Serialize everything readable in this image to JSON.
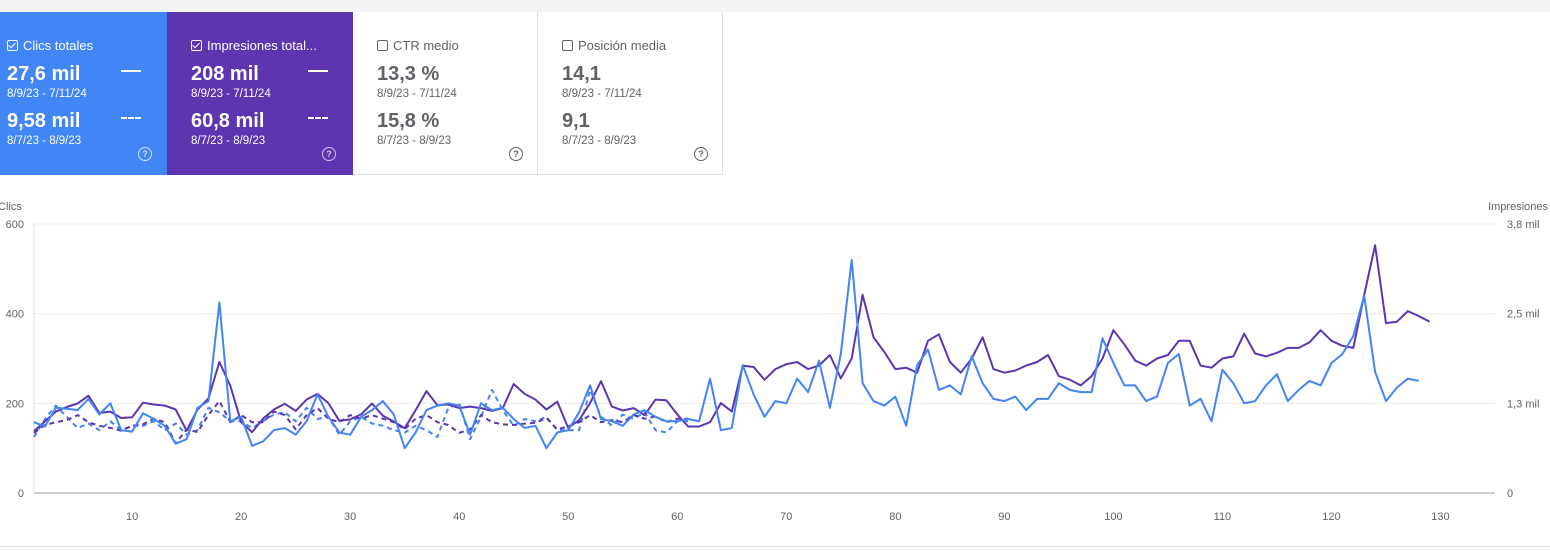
{
  "cards": [
    {
      "id": "clicks",
      "label": "Clics totales",
      "checked": true,
      "value_current": "27,6 mil",
      "range_current": "8/9/23 - 7/11/24",
      "value_previous": "9,58 mil",
      "range_previous": "8/7/23 - 8/9/23",
      "help": "?"
    },
    {
      "id": "impressions",
      "label": "Impresiones total...",
      "checked": true,
      "value_current": "208 mil",
      "range_current": "8/9/23 - 7/11/24",
      "value_previous": "60,8 mil",
      "range_previous": "8/7/23 - 8/9/23",
      "help": "?"
    },
    {
      "id": "ctr",
      "label": "CTR medio",
      "checked": false,
      "value_current": "13,3 %",
      "range_current": "8/9/23 - 7/11/24",
      "value_previous": "15,8 %",
      "range_previous": "8/7/23 - 8/9/23",
      "help": "?"
    },
    {
      "id": "position",
      "label": "Posición media",
      "checked": false,
      "value_current": "14,1",
      "range_current": "8/9/23 - 7/11/24",
      "value_previous": "9,1",
      "range_previous": "8/7/23 - 8/9/23",
      "help": "?"
    }
  ],
  "colors": {
    "clicks": "#4285f4",
    "impressions": "#5e35b1"
  },
  "chart_data": {
    "type": "line",
    "ylabel": "Clics",
    "y2label": "Impresiones",
    "ylim": [
      0,
      600
    ],
    "yticks": [
      "0",
      "200",
      "400",
      "600"
    ],
    "y2lim": [
      0,
      3800
    ],
    "y2ticks": [
      "0",
      "1,3 mil",
      "2,5 mil",
      "3,8 mil"
    ],
    "xticks": [
      10,
      20,
      30,
      40,
      50,
      60,
      70,
      80,
      90,
      100,
      110,
      120,
      130
    ],
    "xlim": [
      1,
      135
    ],
    "grid": true,
    "series": [
      {
        "id": "clicks_current",
        "color": "#4285f4",
        "dash": false,
        "axis": "left",
        "start": 1,
        "values": [
          158,
          148,
          190,
          188,
          185,
          210,
          175,
          200,
          140,
          137,
          178,
          165,
          150,
          110,
          120,
          190,
          205,
          425,
          160,
          170,
          105,
          115,
          140,
          145,
          130,
          160,
          220,
          170,
          135,
          130,
          170,
          185,
          205,
          175,
          100,
          135,
          185,
          195,
          200,
          195,
          130,
          200,
          185,
          190,
          165,
          145,
          150,
          100,
          135,
          140,
          180,
          240,
          165,
          160,
          150,
          175,
          185,
          170,
          160,
          160,
          165,
          160,
          255,
          140,
          145,
          285,
          220,
          170,
          205,
          200,
          255,
          225,
          295,
          190,
          310,
          520,
          245,
          205,
          195,
          215,
          150,
          285,
          320,
          230,
          240,
          220,
          305,
          245,
          210,
          205,
          215,
          185,
          210,
          210,
          245,
          230,
          225,
          225,
          345,
          290,
          240,
          240,
          205,
          215,
          290,
          310,
          195,
          210,
          160,
          275,
          245,
          200,
          205,
          240,
          265,
          205,
          230,
          250,
          240,
          290,
          310,
          350,
          440,
          270,
          205,
          235,
          255,
          250
        ]
      },
      {
        "id": "clicks_previous",
        "color": "#4285f4",
        "dash": true,
        "axis": "left",
        "start": 1,
        "values": [
          125,
          165,
          195,
          170,
          145,
          155,
          140,
          160,
          140,
          150,
          150,
          160,
          140,
          155,
          130,
          140,
          190,
          180,
          160,
          160,
          145,
          160,
          175,
          180,
          160,
          190,
          165,
          170,
          130,
          160,
          170,
          155,
          150,
          140,
          135,
          150,
          140,
          125,
          190,
          200,
          120,
          170,
          230,
          185,
          150,
          165,
          160,
          170,
          140,
          140,
          140,
          230,
          170,
          150,
          175,
          165,
          180,
          140,
          135,
          160,
          160
        ]
      },
      {
        "id": "impressions_current",
        "color": "#5e35b1",
        "dash": false,
        "axis": "right",
        "start": 1,
        "values": [
          875,
          1010,
          1150,
          1215,
          1265,
          1375,
          1130,
          1150,
          1060,
          1070,
          1275,
          1250,
          1235,
          1180,
          880,
          1180,
          1335,
          1850,
          1515,
          1000,
          860,
          1050,
          1180,
          1260,
          1160,
          1320,
          1400,
          1270,
          1020,
          1040,
          1110,
          1265,
          1090,
          1010,
          915,
          1170,
          1440,
          1240,
          1250,
          1200,
          1220,
          1200,
          1160,
          1200,
          1540,
          1400,
          1320,
          1180,
          1290,
          920,
          1030,
          1270,
          1580,
          1220,
          1165,
          1200,
          1100,
          1320,
          1310,
          1110,
          940,
          940,
          1000,
          1270,
          1150,
          1800,
          1780,
          1600,
          1750,
          1820,
          1850,
          1750,
          1800,
          1950,
          1620,
          1900,
          2800,
          2200,
          1990,
          1750,
          1770,
          1700,
          2150,
          2240,
          1850,
          1700,
          1900,
          2200,
          1750,
          1700,
          1730,
          1800,
          1850,
          1950,
          1650,
          1600,
          1520,
          1650,
          1900,
          2300,
          2100,
          1870,
          1800,
          1900,
          1950,
          2150,
          2150,
          1800,
          1770,
          1900,
          1930,
          2250,
          1970,
          1930,
          1980,
          2050,
          2050,
          2130,
          2300,
          2150,
          2080,
          2050,
          2800,
          3500,
          2400,
          2420,
          2570,
          2500,
          2420
        ]
      },
      {
        "id": "impressions_previous",
        "color": "#5e35b1",
        "dash": true,
        "axis": "right",
        "start": 1,
        "values": [
          850,
          960,
          1000,
          1030,
          1100,
          1000,
          950,
          920,
          880,
          950,
          970,
          1050,
          1000,
          700,
          900,
          860,
          1100,
          1300,
          1000,
          1100,
          1000,
          1000,
          1150,
          1100,
          900,
          1100,
          1200,
          1050,
          1000,
          1100,
          1050,
          1100,
          1050,
          1000,
          900,
          1050,
          1100,
          1000,
          960,
          850,
          900,
          1100,
          1000,
          970,
          960,
          980,
          990,
          1060,
          900,
          940,
          1000,
          1100,
          1000,
          1030,
          1000,
          1100,
          1050,
          1080,
          1000,
          1050,
          1050
        ]
      }
    ]
  }
}
